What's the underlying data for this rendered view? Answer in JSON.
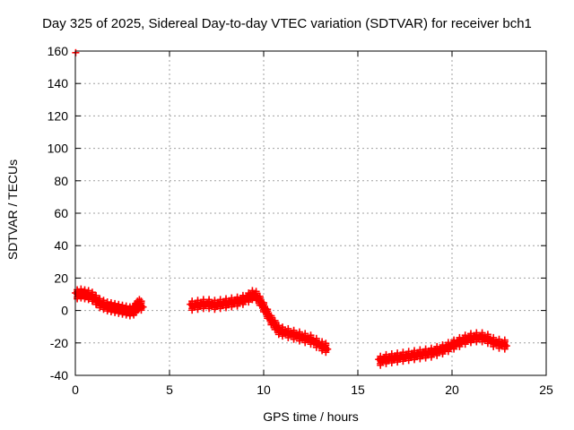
{
  "chart_data": {
    "type": "scatter",
    "title": "Day 325 of 2025, Sidereal Day-to-day VTEC variation (SDTVAR) for receiver bch1",
    "xlabel": "GPS time / hours",
    "ylabel": "SDTVAR / TECUs",
    "xlim": [
      0,
      25
    ],
    "ylim": [
      -40,
      160
    ],
    "xticks": [
      0,
      5,
      10,
      15,
      20,
      25
    ],
    "yticks": [
      -40,
      -20,
      0,
      20,
      40,
      60,
      80,
      100,
      120,
      140,
      160
    ],
    "grid": true,
    "marker": "+",
    "color": "#ff0000",
    "series": [
      {
        "name": "SDTVAR",
        "x": [
          0.02,
          0.1,
          0.3,
          0.5,
          0.7,
          0.9,
          1.1,
          1.3,
          1.5,
          1.7,
          1.9,
          2.1,
          2.3,
          2.5,
          2.7,
          2.9,
          3.1,
          3.2,
          3.3,
          3.4,
          3.5,
          6.2,
          6.5,
          6.8,
          7.1,
          7.4,
          7.7,
          8.0,
          8.3,
          8.6,
          8.9,
          9.2,
          9.4,
          9.6,
          9.8,
          10.0,
          10.2,
          10.4,
          10.6,
          10.8,
          11.0,
          11.3,
          11.6,
          11.9,
          12.2,
          12.5,
          12.8,
          13.1,
          13.3,
          16.2,
          16.5,
          16.8,
          17.1,
          17.4,
          17.7,
          18.0,
          18.3,
          18.6,
          18.9,
          19.2,
          19.5,
          19.8,
          20.1,
          20.4,
          20.7,
          21.0,
          21.3,
          21.6,
          21.9,
          22.2,
          22.5,
          22.8
        ],
        "y": [
          159,
          10,
          10.5,
          10,
          9.5,
          8.5,
          6.5,
          4.5,
          3.5,
          2.5,
          2,
          1.5,
          1,
          0.5,
          0,
          -0.5,
          0,
          1.5,
          3,
          4,
          3,
          3,
          3.5,
          4,
          4,
          3.5,
          4,
          4.5,
          5,
          5.5,
          6.5,
          8,
          9.5,
          9,
          6,
          2,
          -2,
          -6,
          -9,
          -12,
          -13,
          -14,
          -15,
          -16,
          -17,
          -18,
          -20,
          -22,
          -23,
          -31,
          -30,
          -29.5,
          -29,
          -28.5,
          -28,
          -27.5,
          -27,
          -26.5,
          -26,
          -25,
          -24,
          -22.5,
          -21,
          -19.5,
          -18,
          -17,
          -16.5,
          -16.5,
          -17.5,
          -19.5,
          -20.5,
          -21
        ]
      }
    ]
  }
}
